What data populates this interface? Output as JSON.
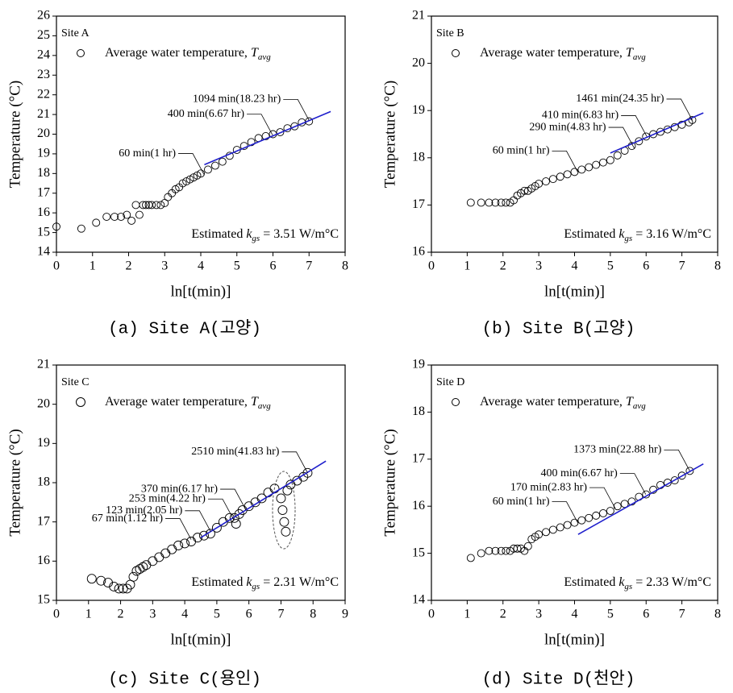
{
  "chart_data": [
    {
      "type": "scatter",
      "title": "Site A",
      "caption": "(a) Site A(고양)",
      "x_label": "ln[t(min)]",
      "y_label": "Temperature (°C)",
      "legend_label": "Average water temperature, ",
      "legend_symbol": "T",
      "legend_subscript": "avg",
      "estimate_prefix": "Estimated ",
      "estimate_symbol": "k",
      "estimate_subscript": "gs",
      "estimate_value": " = 3.51 W/m°C",
      "xlim": [
        0,
        8
      ],
      "xticks": [
        0,
        1,
        2,
        3,
        4,
        5,
        6,
        7,
        8
      ],
      "ylim": [
        14,
        26
      ],
      "yticks": [
        14,
        15,
        16,
        17,
        18,
        19,
        20,
        21,
        22,
        23,
        24,
        25,
        26
      ],
      "color": "#000000",
      "fit": {
        "color": "#1f1fcc",
        "x": [
          4.1,
          7.6
        ],
        "y": [
          18.45,
          21.15
        ]
      },
      "x": [
        0,
        0.69,
        1.1,
        1.39,
        1.61,
        1.79,
        1.95,
        2.08,
        2.2,
        2.3,
        2.4,
        2.48,
        2.56,
        2.64,
        2.77,
        2.89,
        3.0,
        3.09,
        3.2,
        3.3,
        3.4,
        3.5,
        3.6,
        3.7,
        3.8,
        3.9,
        4.0,
        4.2,
        4.4,
        4.6,
        4.8,
        5.0,
        5.2,
        5.4,
        5.6,
        5.8,
        6.0,
        6.2,
        6.4,
        6.6,
        6.8,
        7.0
      ],
      "y": [
        15.3,
        15.2,
        15.5,
        15.8,
        15.8,
        15.8,
        15.9,
        15.6,
        16.4,
        15.9,
        16.4,
        16.4,
        16.4,
        16.4,
        16.4,
        16.4,
        16.5,
        16.8,
        17.0,
        17.2,
        17.3,
        17.5,
        17.6,
        17.7,
        17.8,
        17.9,
        18.0,
        18.2,
        18.4,
        18.6,
        18.9,
        19.2,
        19.4,
        19.6,
        19.8,
        19.9,
        20.0,
        20.1,
        20.3,
        20.4,
        20.6,
        20.65
      ],
      "annotations": [
        {
          "text": "60 min(1 hr)",
          "x": 4.09,
          "y": 17.95
        },
        {
          "text": "400 min(6.67 hr)",
          "x": 5.99,
          "y": 19.95
        },
        {
          "text": "1094 min(18.23 hr)",
          "x": 7.0,
          "y": 20.7
        }
      ]
    },
    {
      "type": "scatter",
      "title": "Site B",
      "caption": "(b) Site B(고양)",
      "x_label": "ln[t(min)]",
      "y_label": "Temperature (°C)",
      "legend_label": "Average water temperature, ",
      "legend_symbol": "T",
      "legend_subscript": "avg",
      "estimate_prefix": "Estimated ",
      "estimate_symbol": "k",
      "estimate_subscript": "gs",
      "estimate_value": " = 3.16 W/m°C",
      "xlim": [
        0,
        8
      ],
      "xticks": [
        0,
        1,
        2,
        3,
        4,
        5,
        6,
        7,
        8
      ],
      "ylim": [
        16,
        21
      ],
      "yticks": [
        16,
        17,
        18,
        19,
        20,
        21
      ],
      "color": "#000000",
      "fit": {
        "color": "#1f1fcc",
        "x": [
          5.0,
          7.6
        ],
        "y": [
          18.1,
          18.95
        ]
      },
      "x": [
        1.1,
        1.39,
        1.61,
        1.79,
        1.95,
        2.08,
        2.2,
        2.3,
        2.4,
        2.5,
        2.6,
        2.7,
        2.8,
        2.9,
        3.0,
        3.2,
        3.4,
        3.6,
        3.8,
        4.0,
        4.2,
        4.4,
        4.6,
        4.8,
        5.0,
        5.2,
        5.4,
        5.6,
        5.8,
        6.0,
        6.2,
        6.4,
        6.6,
        6.8,
        7.0,
        7.2,
        7.29
      ],
      "y": [
        17.05,
        17.05,
        17.05,
        17.05,
        17.05,
        17.05,
        17.05,
        17.1,
        17.2,
        17.25,
        17.3,
        17.3,
        17.35,
        17.4,
        17.45,
        17.5,
        17.55,
        17.6,
        17.65,
        17.7,
        17.75,
        17.8,
        17.85,
        17.9,
        17.95,
        18.05,
        18.15,
        18.25,
        18.35,
        18.45,
        18.5,
        18.55,
        18.6,
        18.65,
        18.7,
        18.75,
        18.8
      ],
      "annotations": [
        {
          "text": "60 min(1 hr)",
          "x": 4.09,
          "y": 17.7
        },
        {
          "text": "290 min(4.83 hr)",
          "x": 5.67,
          "y": 18.2
        },
        {
          "text": "410 min(6.83 hr)",
          "x": 6.02,
          "y": 18.45
        },
        {
          "text": "1461 min(24.35 hr)",
          "x": 7.29,
          "y": 18.8
        }
      ]
    },
    {
      "type": "scatter",
      "title": "Site C",
      "caption": "(c) Site C(용인)",
      "x_label": "ln[t(min)]",
      "y_label": "Temperature (°C)",
      "legend_label": "Average water temperature, ",
      "legend_symbol": "T",
      "legend_subscript": "avg",
      "estimate_prefix": "Estimated ",
      "estimate_symbol": "k",
      "estimate_subscript": "gs",
      "estimate_value": " = 2.31 W/m°C",
      "xlim": [
        0,
        9
      ],
      "xticks": [
        0,
        1,
        2,
        3,
        4,
        5,
        6,
        7,
        8,
        9
      ],
      "ylim": [
        15,
        21
      ],
      "yticks": [
        15,
        16,
        17,
        18,
        19,
        20,
        21
      ],
      "color": "#000000",
      "fit": {
        "color": "#1f1fcc",
        "x": [
          4.5,
          8.4
        ],
        "y": [
          16.6,
          18.55
        ]
      },
      "x": [
        1.1,
        1.39,
        1.61,
        1.79,
        1.95,
        2.08,
        2.2,
        2.3,
        2.4,
        2.5,
        2.6,
        2.7,
        2.8,
        3.0,
        3.2,
        3.4,
        3.6,
        3.8,
        4.0,
        4.2,
        4.4,
        4.6,
        4.8,
        5.0,
        5.2,
        5.4,
        5.55,
        5.6,
        5.7,
        5.8,
        6.0,
        6.2,
        6.4,
        6.6,
        6.8,
        7.0,
        7.05,
        7.1,
        7.15,
        7.2,
        7.3,
        7.5,
        7.7,
        7.83
      ],
      "y": [
        15.55,
        15.5,
        15.45,
        15.35,
        15.3,
        15.3,
        15.3,
        15.4,
        15.6,
        15.75,
        15.8,
        15.85,
        15.9,
        16.0,
        16.1,
        16.2,
        16.3,
        16.4,
        16.45,
        16.5,
        16.6,
        16.65,
        16.7,
        16.85,
        17.0,
        17.1,
        17.1,
        16.95,
        17.2,
        17.3,
        17.4,
        17.5,
        17.6,
        17.75,
        17.85,
        17.6,
        17.3,
        17.0,
        16.75,
        17.8,
        17.95,
        18.05,
        18.15,
        18.25
      ],
      "annotations": [
        {
          "text": "67 min(1.12 hr)",
          "x": 4.2,
          "y": 16.55
        },
        {
          "text": "123 min(2.05 hr)",
          "x": 4.81,
          "y": 16.75
        },
        {
          "text": "253 min(4.22 hr)",
          "x": 5.53,
          "y": 17.05
        },
        {
          "text": "370 min(6.17 hr)",
          "x": 5.91,
          "y": 17.3
        },
        {
          "text": "2510 min(41.83 hr)",
          "x": 7.83,
          "y": 18.25
        }
      ]
    },
    {
      "type": "scatter",
      "title": "Site D",
      "caption": "(d) Site D(천안)",
      "x_label": "ln[t(min)]",
      "y_label": "Temperature (°C)",
      "legend_label": "Average water temperature, ",
      "legend_symbol": "T",
      "legend_subscript": "avg",
      "estimate_prefix": "Estimated ",
      "estimate_symbol": "k",
      "estimate_subscript": "gs",
      "estimate_value": " = 2.33 W/m°C",
      "xlim": [
        0,
        8
      ],
      "xticks": [
        0,
        1,
        2,
        3,
        4,
        5,
        6,
        7,
        8
      ],
      "ylim": [
        14,
        19
      ],
      "yticks": [
        14,
        15,
        16,
        17,
        18,
        19
      ],
      "color": "#000000",
      "fit": {
        "color": "#1f1fcc",
        "x": [
          4.1,
          7.6
        ],
        "y": [
          15.4,
          16.9
        ]
      },
      "x": [
        1.1,
        1.39,
        1.61,
        1.79,
        1.95,
        2.08,
        2.2,
        2.3,
        2.4,
        2.5,
        2.6,
        2.7,
        2.8,
        2.9,
        3.0,
        3.2,
        3.4,
        3.6,
        3.8,
        4.0,
        4.2,
        4.4,
        4.6,
        4.8,
        5.0,
        5.2,
        5.4,
        5.6,
        5.8,
        6.0,
        6.2,
        6.4,
        6.6,
        6.8,
        7.0,
        7.22
      ],
      "y": [
        14.9,
        15.0,
        15.05,
        15.05,
        15.05,
        15.05,
        15.05,
        15.1,
        15.1,
        15.1,
        15.05,
        15.15,
        15.3,
        15.35,
        15.4,
        15.45,
        15.5,
        15.55,
        15.6,
        15.65,
        15.7,
        15.75,
        15.8,
        15.85,
        15.9,
        16.0,
        16.05,
        16.1,
        16.2,
        16.25,
        16.35,
        16.45,
        16.5,
        16.55,
        16.65,
        16.75
      ],
      "annotations": [
        {
          "text": "60 min(1 hr)",
          "x": 4.09,
          "y": 15.65
        },
        {
          "text": "170 min(2.83 hr)",
          "x": 5.14,
          "y": 15.95
        },
        {
          "text": "400 min(6.67 hr)",
          "x": 5.99,
          "y": 16.25
        },
        {
          "text": "1373 min(22.88 hr)",
          "x": 7.22,
          "y": 16.75
        }
      ]
    }
  ]
}
